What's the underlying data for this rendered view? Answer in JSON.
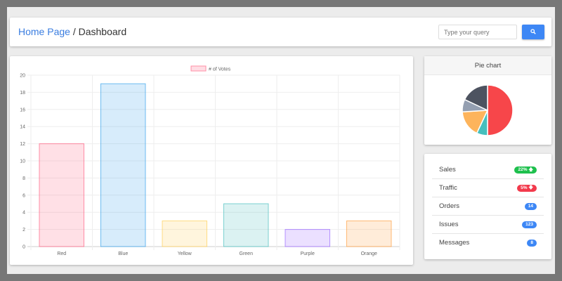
{
  "header": {
    "home": "Home Page",
    "sep": " / ",
    "current": "Dashboard",
    "search_placeholder": "Type your query",
    "search_icon": "search-icon"
  },
  "pie": {
    "title": "Pie chart"
  },
  "stats": [
    {
      "label": "Sales",
      "badge": "22%",
      "icon": "arrow-up",
      "color": "#1ec04d"
    },
    {
      "label": "Traffic",
      "badge": "5%",
      "icon": "arrow-down",
      "color": "#f23a4c"
    },
    {
      "label": "Orders",
      "badge": "14",
      "color": "#3d87f5"
    },
    {
      "label": "Issues",
      "badge": "123",
      "color": "#3d87f5"
    },
    {
      "label": "Messages",
      "badge": "8",
      "color": "#3d87f5"
    }
  ],
  "chart_data": [
    {
      "type": "bar",
      "categories": [
        "Red",
        "Blue",
        "Yellow",
        "Green",
        "Purple",
        "Orange"
      ],
      "series": [
        {
          "name": "# of Votes",
          "values": [
            12,
            19,
            3,
            5,
            2,
            3
          ]
        }
      ],
      "ylim": [
        0,
        20
      ],
      "yticks": [
        0,
        2,
        4,
        6,
        8,
        10,
        12,
        14,
        16,
        18,
        20
      ],
      "grid": true,
      "legend": "top",
      "colors": [
        "#ff6384",
        "#36a2eb",
        "#ffce56",
        "#4bc0c0",
        "#9966ff",
        "#ff9f40"
      ]
    },
    {
      "type": "pie",
      "title": "Pie chart",
      "values": [
        50,
        7,
        17,
        8,
        18
      ],
      "colors": [
        "#f7464a",
        "#46bfbd",
        "#fdb45c",
        "#949fb1",
        "#4d5360"
      ]
    }
  ]
}
